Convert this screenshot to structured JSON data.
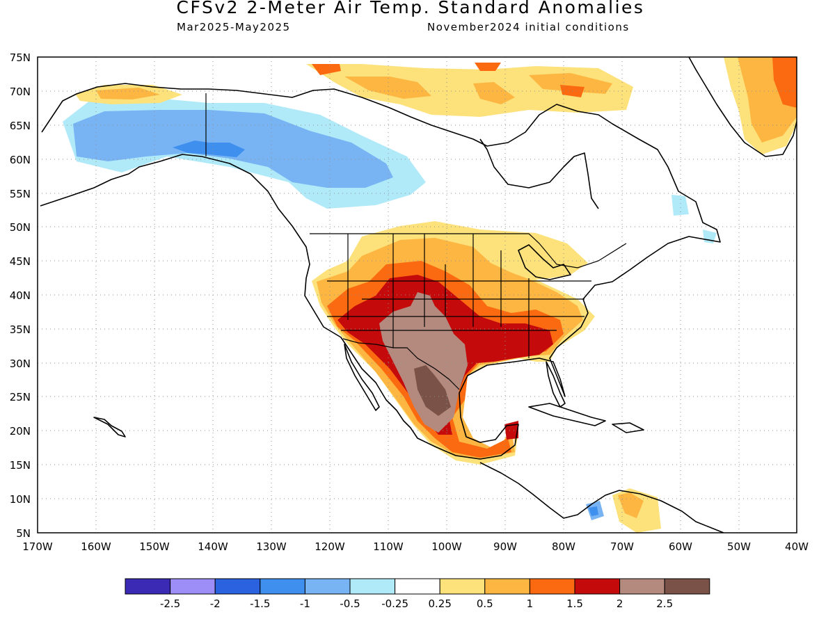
{
  "header": {
    "title": "CFSv2 2-Meter Air Temp. Standard Anomalies",
    "valid_period": "Mar2025-May2025",
    "initial_conditions": "November2024 initial conditions"
  },
  "axes": {
    "lat_labels": [
      "75N",
      "70N",
      "65N",
      "60N",
      "55N",
      "50N",
      "45N",
      "40N",
      "35N",
      "30N",
      "25N",
      "20N",
      "15N",
      "10N",
      "5N"
    ],
    "lon_labels": [
      "170W",
      "160W",
      "150W",
      "140W",
      "130W",
      "120W",
      "110W",
      "100W",
      "90W",
      "80W",
      "70W",
      "60W",
      "50W",
      "40W"
    ]
  },
  "colorbar": {
    "colors": [
      "#3a2ab4",
      "#9d8ef7",
      "#2a62e0",
      "#3f8fee",
      "#78b4f4",
      "#b0eaf9",
      "#ffffff",
      "#fde17a",
      "#fcb641",
      "#fb6a10",
      "#c40a0a",
      "#b58a7e",
      "#7a5247"
    ],
    "tick_labels": [
      "-2.5",
      "-2",
      "-1.5",
      "-1",
      "-0.5",
      "-0.25",
      "0.25",
      "0.5",
      "1",
      "1.5",
      "2",
      "2.5"
    ]
  }
}
